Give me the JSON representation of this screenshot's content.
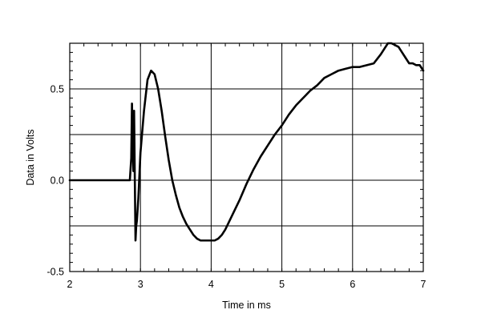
{
  "chart_data": {
    "type": "line",
    "title": "",
    "xlabel": "Time in ms",
    "ylabel": "Data in Volts",
    "xlim": [
      2,
      7
    ],
    "ylim": [
      -0.5,
      0.75
    ],
    "grid": true,
    "x_ticks": [
      2,
      3,
      4,
      5,
      6,
      7
    ],
    "x_tick_labels": [
      "2",
      "3",
      "4",
      "5",
      "6",
      "7"
    ],
    "y_ticks": [
      -0.5,
      0.0,
      0.5
    ],
    "y_tick_labels": [
      "-0.5",
      "0.0",
      "0.5"
    ],
    "line_color": "#000000",
    "series": [
      {
        "x": [
          2.0,
          2.5,
          2.85,
          2.87,
          2.88,
          2.9,
          2.91,
          2.92,
          2.93,
          2.94,
          2.95,
          2.97,
          3.0,
          3.05,
          3.1,
          3.15,
          3.2,
          3.25,
          3.3,
          3.35,
          3.4,
          3.45,
          3.5,
          3.55,
          3.6,
          3.65,
          3.7,
          3.75,
          3.8,
          3.85,
          3.9,
          3.95,
          4.0,
          4.05,
          4.1,
          4.15,
          4.2,
          4.3,
          4.4,
          4.5,
          4.6,
          4.7,
          4.8,
          4.9,
          5.0,
          5.1,
          5.2,
          5.3,
          5.4,
          5.5,
          5.6,
          5.7,
          5.8,
          5.9,
          6.0,
          6.1,
          6.2,
          6.3,
          6.4,
          6.45,
          6.5,
          6.55,
          6.6,
          6.65,
          6.7,
          6.75,
          6.8,
          6.85,
          6.9,
          6.95,
          7.0
        ],
        "y": [
          0.0,
          0.0,
          0.0,
          0.12,
          0.42,
          0.05,
          0.38,
          0.02,
          -0.33,
          -0.25,
          -0.22,
          -0.1,
          0.15,
          0.38,
          0.55,
          0.6,
          0.58,
          0.5,
          0.38,
          0.24,
          0.11,
          0.0,
          -0.08,
          -0.15,
          -0.2,
          -0.24,
          -0.27,
          -0.3,
          -0.32,
          -0.33,
          -0.33,
          -0.33,
          -0.33,
          -0.33,
          -0.32,
          -0.3,
          -0.27,
          -0.19,
          -0.11,
          -0.02,
          0.06,
          0.13,
          0.19,
          0.25,
          0.3,
          0.36,
          0.41,
          0.45,
          0.49,
          0.52,
          0.56,
          0.58,
          0.6,
          0.61,
          0.62,
          0.62,
          0.63,
          0.64,
          0.69,
          0.72,
          0.75,
          0.75,
          0.74,
          0.73,
          0.7,
          0.67,
          0.64,
          0.64,
          0.63,
          0.63,
          0.6
        ]
      }
    ]
  }
}
